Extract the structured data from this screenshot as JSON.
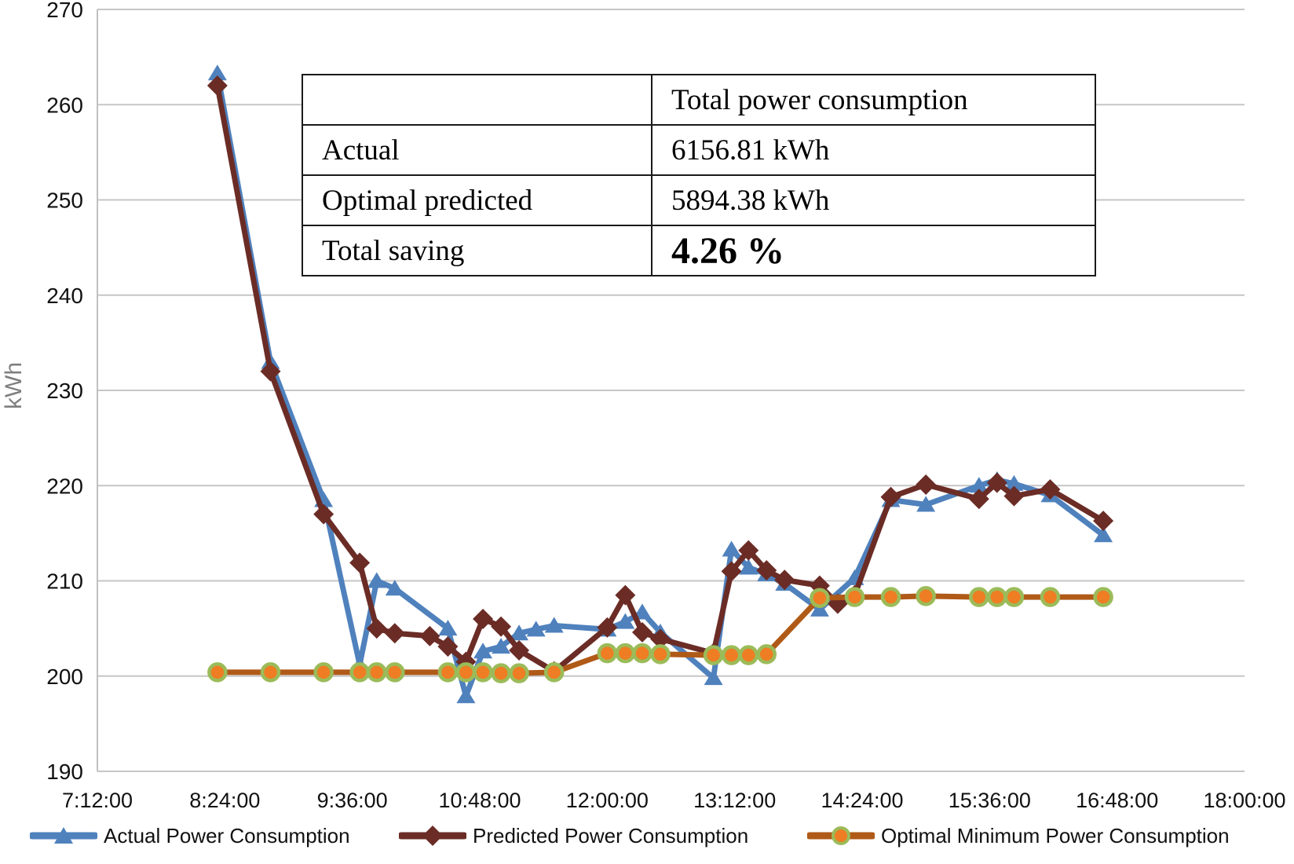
{
  "chart_data": {
    "type": "line",
    "title": "",
    "xlabel": "",
    "ylabel": "kWh",
    "ylim": [
      190,
      270
    ],
    "ytick_step": 10,
    "xlim_hours": [
      7.2,
      18.0
    ],
    "xtick_interval_hours": 1.2,
    "xtick_labels": [
      "7:12:00",
      "8:24:00",
      "9:36:00",
      "10:48:00",
      "12:00:00",
      "13:12:00",
      "14:24:00",
      "15:36:00",
      "16:48:00",
      "18:00:00"
    ],
    "grid": true,
    "legend_position": "bottom",
    "x_hours": [
      8.33,
      8.83,
      9.33,
      9.67,
      9.83,
      10.0,
      10.33,
      10.5,
      10.67,
      10.83,
      11.0,
      11.17,
      11.33,
      11.5,
      12.0,
      12.17,
      12.33,
      12.5,
      13.0,
      13.17,
      13.33,
      13.5,
      13.67,
      14.0,
      14.17,
      14.33,
      14.67,
      15.0,
      15.5,
      15.67,
      15.83,
      16.17,
      16.67
    ],
    "series": [
      {
        "name": "Actual Power Consumption",
        "marker": "triangle",
        "color": "#4f81bd",
        "values": [
          263.3,
          233.0,
          218.5,
          201.2,
          210.0,
          209.2,
          null,
          205.0,
          197.9,
          202.6,
          203.1,
          204.5,
          204.9,
          205.3,
          204.9,
          205.7,
          206.7,
          204.6,
          199.8,
          213.3,
          211.4,
          210.7,
          209.7,
          207.0,
          null,
          210.3,
          218.5,
          218.0,
          220.0,
          220.6,
          220.2,
          219.0,
          214.8
        ]
      },
      {
        "name": "Predicted Power Consumption",
        "marker": "diamond",
        "color": "#6b2c26",
        "values": [
          262.0,
          232.0,
          217.0,
          211.9,
          205.0,
          204.5,
          204.2,
          203.1,
          201.5,
          206.0,
          205.2,
          202.7,
          null,
          200.5,
          205.1,
          208.5,
          204.6,
          203.9,
          202.4,
          211.0,
          213.2,
          211.1,
          210.1,
          209.5,
          207.6,
          208.5,
          218.8,
          220.1,
          218.6,
          220.3,
          218.9,
          219.6,
          216.3
        ]
      },
      {
        "name": "Optimal Minimum Power Consumption",
        "marker": "circle",
        "color": "#b05a18",
        "marker_fill": "#ef7d23",
        "marker_ring": "#9bbb59",
        "values": [
          200.4,
          200.4,
          200.4,
          200.4,
          200.4,
          200.4,
          null,
          200.4,
          200.4,
          200.4,
          200.3,
          200.3,
          null,
          200.4,
          202.4,
          202.4,
          202.4,
          202.3,
          202.2,
          202.2,
          202.2,
          202.3,
          null,
          208.2,
          null,
          208.3,
          208.3,
          208.4,
          208.3,
          208.3,
          208.3,
          208.3,
          208.3
        ]
      }
    ],
    "colors": {
      "gridline": "#c6c6c6",
      "axis_line": "#c0c0c0",
      "tick_text": "#111111",
      "axis_title_text": "#7f7f7f"
    }
  },
  "summary_table": {
    "header": [
      "",
      "Total power consumption"
    ],
    "rows": [
      [
        "Actual",
        "6156.81 kWh"
      ],
      [
        "Optimal predicted",
        "5894.38 kWh"
      ],
      [
        "Total saving",
        "4.26 %"
      ]
    ]
  }
}
